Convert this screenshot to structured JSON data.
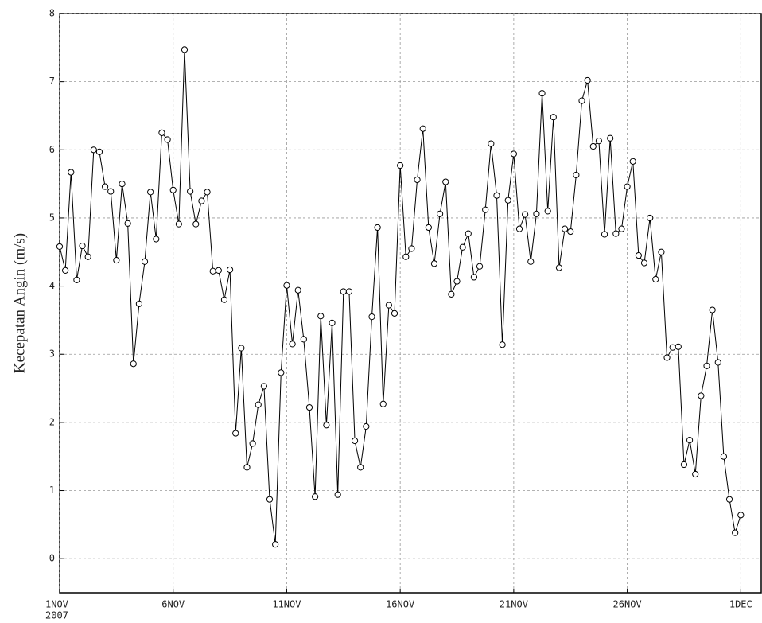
{
  "chart_data": {
    "type": "line",
    "ylabel": "Kecepatan Angin (m/s)",
    "year": "2007",
    "color": "#000000",
    "marker_color": "#ffffff",
    "grid": true,
    "xlim": [
      0,
      30.9
    ],
    "ylim": [
      -0.5,
      8
    ],
    "yticks": [
      0,
      1,
      2,
      3,
      4,
      5,
      6,
      7,
      8
    ],
    "xticks": [
      {
        "value": 0,
        "label": "1NOV"
      },
      {
        "value": 5,
        "label": "6NOV"
      },
      {
        "value": 10,
        "label": "11NOV"
      },
      {
        "value": 15,
        "label": "16NOV"
      },
      {
        "value": 20,
        "label": "21NOV"
      },
      {
        "value": 25,
        "label": "26NOV"
      },
      {
        "value": 30,
        "label": "1DEC"
      }
    ],
    "x": [
      0,
      0.25,
      0.5,
      0.75,
      1,
      1.25,
      1.5,
      1.75,
      2,
      2.25,
      2.5,
      2.75,
      3,
      3.25,
      3.5,
      3.75,
      4,
      4.25,
      4.5,
      4.75,
      5,
      5.25,
      5.5,
      5.75,
      6,
      6.25,
      6.5,
      6.75,
      7,
      7.25,
      7.5,
      7.75,
      8,
      8.25,
      8.5,
      8.75,
      9,
      9.25,
      9.5,
      9.75,
      10,
      10.25,
      10.5,
      10.75,
      11,
      11.25,
      11.5,
      11.75,
      12,
      12.25,
      12.5,
      12.75,
      13,
      13.25,
      13.5,
      13.75,
      14,
      14.25,
      14.5,
      14.75,
      15,
      15.25,
      15.5,
      15.75,
      16,
      16.25,
      16.5,
      16.75,
      17,
      17.25,
      17.5,
      17.75,
      18,
      18.25,
      18.5,
      18.75,
      19,
      19.25,
      19.5,
      19.75,
      20,
      20.25,
      20.5,
      20.75,
      21,
      21.25,
      21.5,
      21.75,
      22,
      22.25,
      22.5,
      22.75,
      23,
      23.25,
      23.5,
      23.75,
      24,
      24.25,
      24.5,
      24.75,
      25,
      25.25,
      25.5,
      25.75,
      26,
      26.25,
      26.5,
      26.75,
      27,
      27.25,
      27.5,
      27.75,
      28,
      28.25,
      28.5,
      28.75,
      29,
      29.25,
      29.5,
      29.75,
      30
    ],
    "values": [
      4.58,
      4.23,
      5.67,
      4.09,
      4.59,
      4.43,
      6.0,
      5.97,
      5.46,
      5.39,
      4.38,
      5.5,
      4.92,
      2.86,
      3.74,
      4.36,
      5.38,
      4.69,
      6.25,
      6.15,
      5.41,
      4.91,
      7.47,
      5.39,
      4.91,
      5.25,
      5.38,
      4.22,
      4.23,
      3.8,
      4.24,
      1.84,
      3.09,
      1.34,
      1.69,
      2.26,
      2.53,
      0.87,
      0.21,
      2.73,
      4.01,
      3.15,
      3.94,
      3.22,
      2.22,
      0.91,
      3.56,
      1.96,
      3.46,
      0.94,
      3.92,
      3.92,
      1.73,
      1.34,
      1.94,
      3.55,
      4.86,
      2.27,
      3.72,
      3.6,
      5.77,
      4.43,
      4.55,
      5.56,
      6.31,
      4.86,
      4.33,
      5.06,
      5.53,
      3.88,
      4.07,
      4.57,
      4.77,
      4.13,
      4.29,
      5.12,
      6.09,
      5.33,
      3.14,
      5.26,
      5.94,
      4.84,
      5.05,
      4.36,
      5.06,
      6.83,
      5.1,
      6.48,
      4.27,
      4.84,
      4.8,
      5.63,
      6.72,
      7.02,
      6.05,
      6.13,
      4.76,
      6.17,
      4.77,
      4.84,
      5.46,
      5.83,
      4.45,
      4.34,
      5.0,
      4.1,
      4.5,
      2.95,
      3.1,
      3.11,
      1.38,
      1.74,
      1.24,
      2.39,
      2.83,
      3.65,
      2.88,
      1.5,
      0.87,
      0.38,
      0.64
    ]
  }
}
